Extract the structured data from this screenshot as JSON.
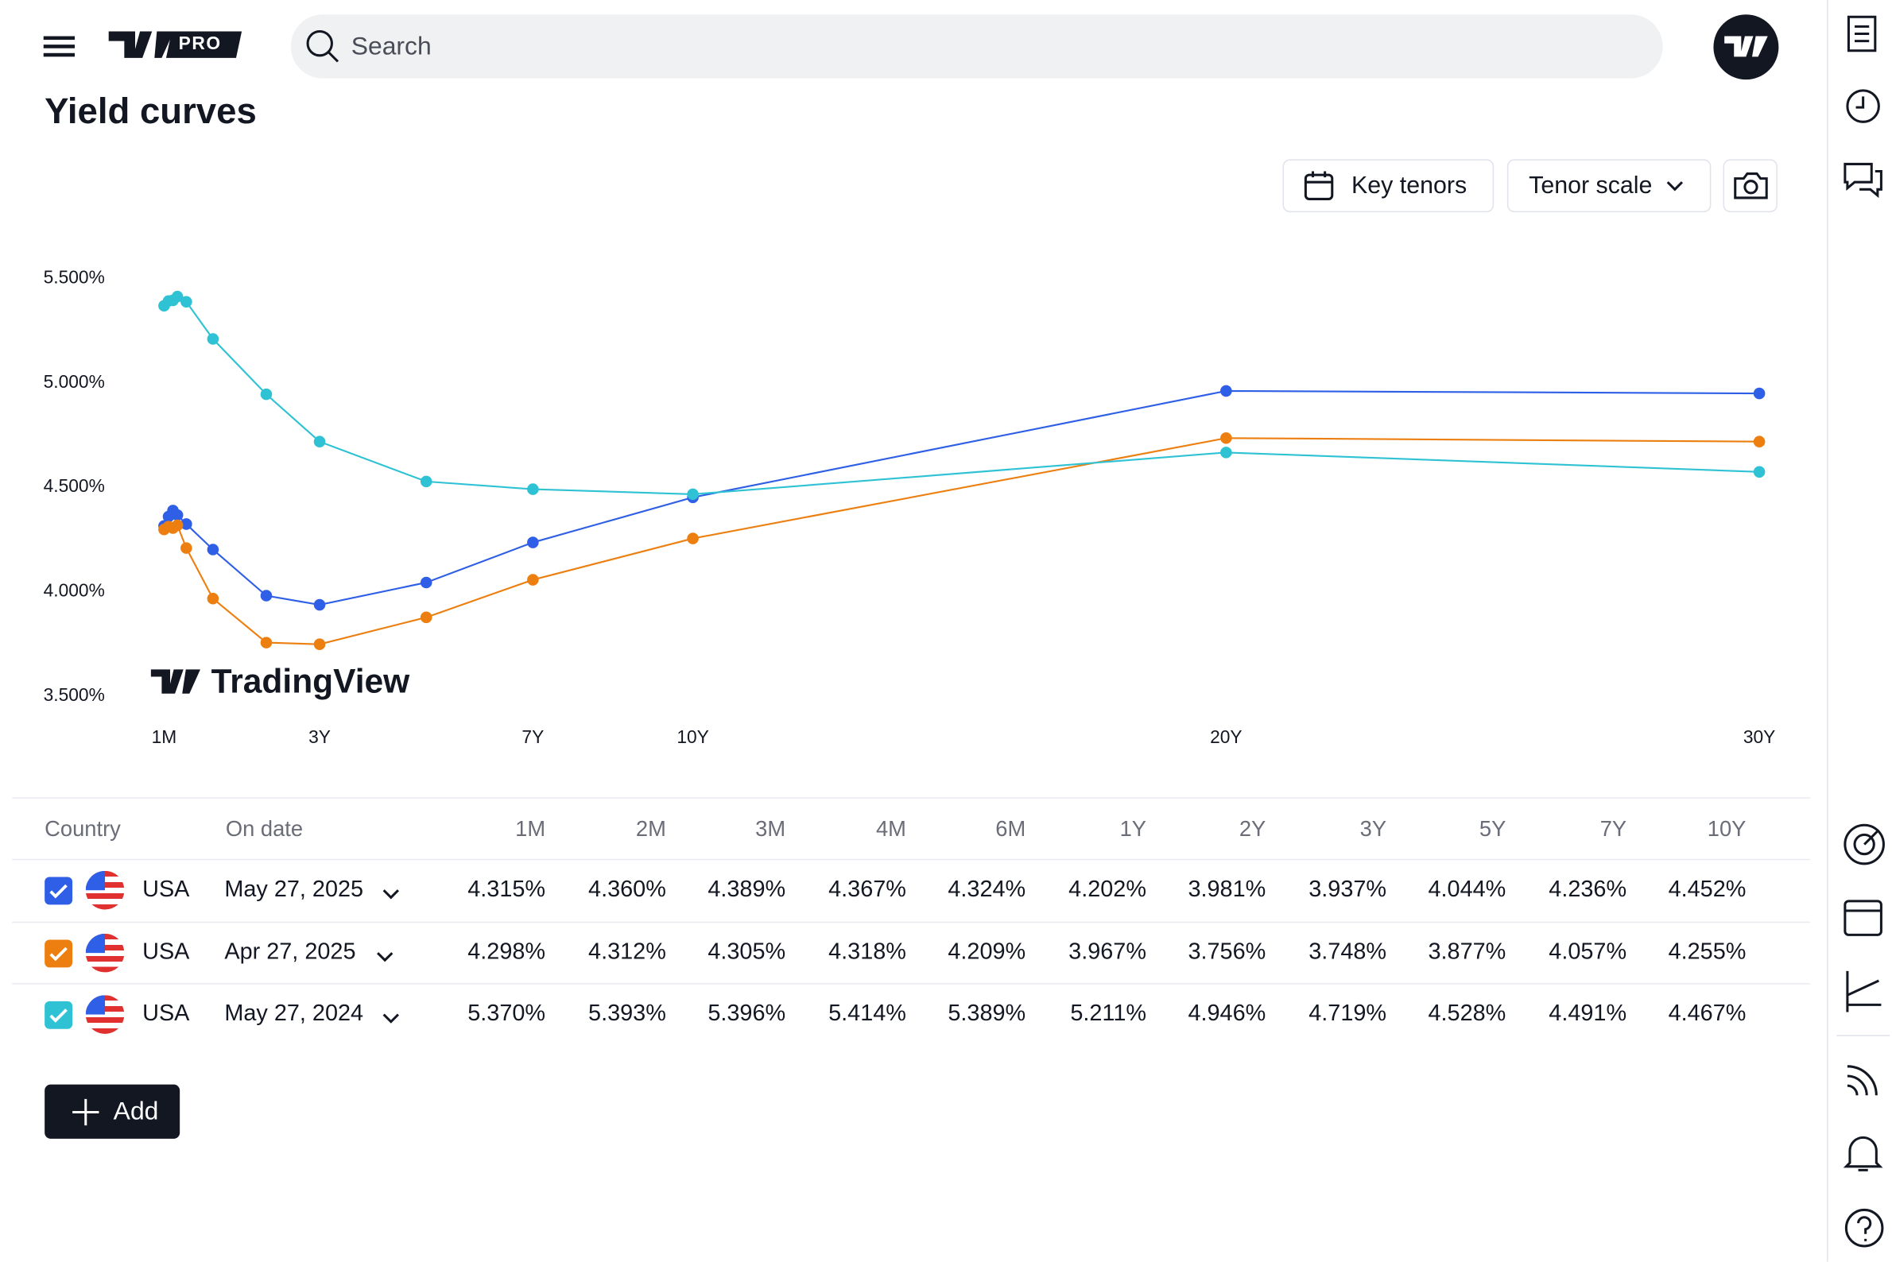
{
  "header": {
    "logo_badge": "PRO",
    "search_placeholder": "Search"
  },
  "page_title": "Yield curves",
  "toolbar": {
    "key_tenors": "Key tenors",
    "tenor_scale": "Tenor scale"
  },
  "watermark": "TradingView",
  "chart_data": {
    "type": "line",
    "x": [
      0.0833,
      0.1667,
      0.25,
      0.3333,
      0.5,
      1,
      2,
      3,
      5,
      7,
      10,
      20,
      30
    ],
    "xlim": [
      0,
      30
    ],
    "xticks": [
      {
        "value": 0.0833,
        "label": "1M"
      },
      {
        "value": 3,
        "label": "3Y"
      },
      {
        "value": 7,
        "label": "7Y"
      },
      {
        "value": 10,
        "label": "10Y"
      },
      {
        "value": 20,
        "label": "20Y"
      },
      {
        "value": 30,
        "label": "30Y"
      }
    ],
    "ylim": [
      3.5,
      5.5
    ],
    "yticks": [
      {
        "value": 3.5,
        "label": "3.500%"
      },
      {
        "value": 4.0,
        "label": "4.000%"
      },
      {
        "value": 4.5,
        "label": "4.500%"
      },
      {
        "value": 5.0,
        "label": "5.000%"
      },
      {
        "value": 5.5,
        "label": "5.500%"
      }
    ],
    "series": [
      {
        "name": "May 27, 2025",
        "color": "#2f5fe6",
        "values": [
          4.315,
          4.36,
          4.389,
          4.367,
          4.324,
          4.202,
          3.981,
          3.937,
          4.044,
          4.236,
          4.452,
          4.962,
          4.95
        ]
      },
      {
        "name": "Apr 27, 2025",
        "color": "#ec7f10",
        "values": [
          4.298,
          4.312,
          4.305,
          4.318,
          4.209,
          3.967,
          3.756,
          3.748,
          3.877,
          4.057,
          4.255,
          4.736,
          4.719
        ]
      },
      {
        "name": "May 27, 2024",
        "color": "#2ec2d4",
        "values": [
          5.37,
          5.393,
          5.396,
          5.414,
          5.389,
          5.211,
          4.946,
          4.719,
          4.528,
          4.491,
          4.467,
          4.667,
          4.574
        ]
      }
    ]
  },
  "table": {
    "columns": [
      "Country",
      "On date",
      "1M",
      "2M",
      "3M",
      "4M",
      "6M",
      "1Y",
      "2Y",
      "3Y",
      "5Y",
      "7Y",
      "10Y"
    ],
    "rows": [
      {
        "country": "USA",
        "values": [
          "4.315%",
          "4.360%",
          "4.389%",
          "4.367%",
          "4.324%",
          "4.202%",
          "3.981%",
          "3.937%",
          "4.044%",
          "4.236%",
          "4.452%"
        ]
      },
      {
        "country": "USA",
        "values": [
          "4.298%",
          "4.312%",
          "4.305%",
          "4.318%",
          "4.209%",
          "3.967%",
          "3.756%",
          "3.748%",
          "3.877%",
          "4.057%",
          "4.255%"
        ]
      },
      {
        "country": "USA",
        "values": [
          "5.370%",
          "5.393%",
          "5.396%",
          "5.414%",
          "5.389%",
          "5.211%",
          "4.946%",
          "4.719%",
          "4.528%",
          "4.491%",
          "4.467%"
        ]
      }
    ]
  },
  "add_button": "Add"
}
